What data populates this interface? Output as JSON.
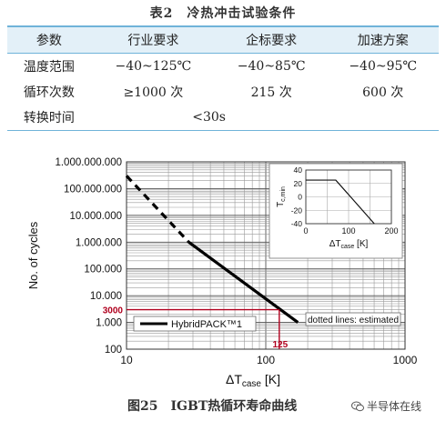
{
  "table": {
    "title": "表2　冷热冲击试验条件",
    "headers": [
      "参数",
      "行业要求",
      "企标要求",
      "加速方案"
    ],
    "rows": [
      [
        "温度范围",
        "−40~125℃",
        "−40~85℃",
        "−40~95℃"
      ],
      [
        "循环次数",
        "≥1000 次",
        "215 次",
        "600 次"
      ]
    ],
    "last_row": {
      "label": "转换时间",
      "value": "<30s"
    }
  },
  "chart_data": {
    "type": "line",
    "x_scale": "log",
    "y_scale": "log",
    "xlim": [
      10,
      1000
    ],
    "ylim": [
      100,
      1000000000
    ],
    "x_ticks": [
      "10",
      "100",
      "1000"
    ],
    "y_ticks": [
      "1.000.000.000",
      "100.000.000",
      "10.000.000",
      "1.000.000",
      "100.000",
      "10.000",
      "1.000",
      "100"
    ],
    "ylabel": "No. of cycles",
    "xlabel_main": "ΔT",
    "xlabel_sub": "case",
    "xlabel_unit": "[K]",
    "series": [
      {
        "name": "HybridPACK™1",
        "solid": [
          [
            28,
            1000000
          ],
          [
            170,
            1000
          ]
        ],
        "dashed": [
          [
            10,
            300000000
          ],
          [
            28,
            1000000
          ]
        ]
      }
    ],
    "annotation_text": "dotted lines: estimated",
    "marker_x": 125,
    "marker_x_label": "125",
    "marker_y": 3000,
    "marker_y_label": "3000",
    "marker_color": "#b0001e",
    "grid": true,
    "inset": {
      "ylabel": "T",
      "ylabel_sub": "c,min",
      "xlabel_main": "ΔT",
      "xlabel_sub": "case",
      "xlabel_unit": "[K]",
      "xlim": [
        0,
        200
      ],
      "ylim": [
        -40,
        40
      ],
      "x_ticks": [
        "0",
        "100",
        "200"
      ],
      "y_ticks": [
        "40",
        "20",
        "0",
        "-20",
        "-40"
      ],
      "line": [
        [
          0,
          25
        ],
        [
          70,
          25
        ],
        [
          160,
          -40
        ]
      ]
    }
  },
  "caption": "图25　IGBT热循环寿命曲线",
  "watermark": "半导体在线",
  "colors": {
    "accent": "#6fb3d9",
    "header_bg": "#e3f0f8",
    "marker": "#b0001e"
  }
}
